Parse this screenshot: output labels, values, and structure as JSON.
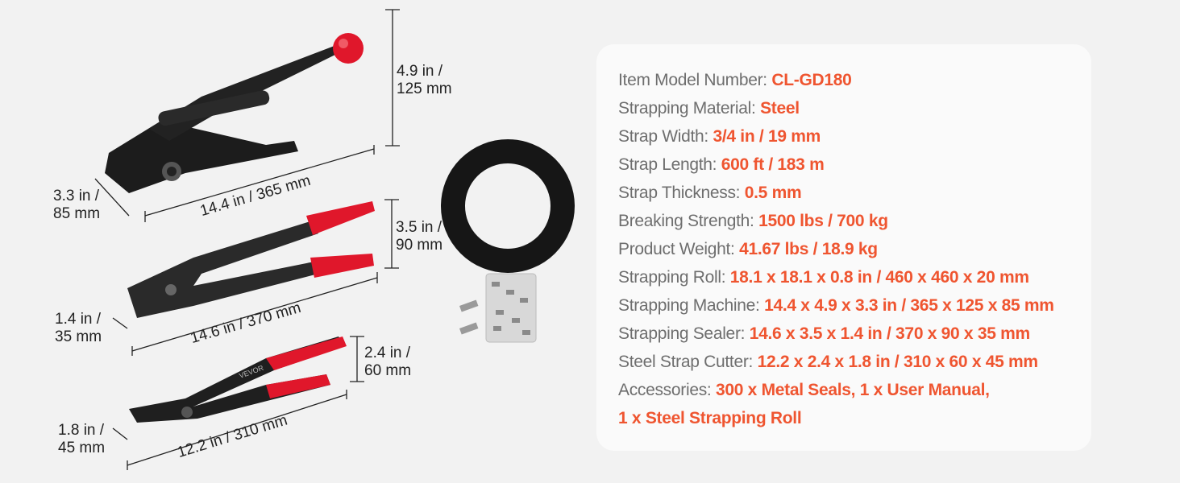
{
  "colors": {
    "accent": "#ef5530",
    "label": "#6e6e6e",
    "background": "#f2f2f2",
    "card": "#fafafa",
    "tool_red": "#e0172b",
    "tool_black": "#1c1c1c"
  },
  "dimensions": {
    "machine_height": [
      "4.9 in /",
      "125 mm"
    ],
    "machine_width": [
      "3.3 in /",
      "85 mm"
    ],
    "machine_length": "14.4 in / 365 mm",
    "sealer_height": [
      "3.5 in /",
      "90 mm"
    ],
    "sealer_width": [
      "1.4 in /",
      "35 mm"
    ],
    "sealer_length": "14.6 in / 370 mm",
    "cutter_height": [
      "2.4 in /",
      "60 mm"
    ],
    "cutter_width": [
      "1.8 in /",
      "45 mm"
    ],
    "cutter_length": "12.2 in / 310 mm"
  },
  "brand_mark": "VEVOR",
  "specs": [
    {
      "label": "Item Model Number: ",
      "value": "CL-GD180"
    },
    {
      "label": "Strapping Material: ",
      "value": "Steel"
    },
    {
      "label": "Strap Width: ",
      "value": "3/4 in / 19 mm"
    },
    {
      "label": "Strap Length: ",
      "value": "600 ft / 183 m"
    },
    {
      "label": "Strap Thickness: ",
      "value": "0.5 mm"
    },
    {
      "label": "Breaking Strength: ",
      "value": "1500 lbs / 700 kg"
    },
    {
      "label": "Product Weight: ",
      "value": "41.67 lbs / 18.9 kg"
    },
    {
      "label": "Strapping Roll: ",
      "value": "18.1 x 18.1 x 0.8 in / 460 x 460 x 20 mm"
    },
    {
      "label": "Strapping Machine: ",
      "value": "14.4 x 4.9 x 3.3 in / 365 x 125 x 85 mm"
    },
    {
      "label": "Strapping Sealer: ",
      "value": "14.6 x 3.5 x 1.4 in / 370 x 90 x 35 mm"
    },
    {
      "label": "Steel Strap Cutter: ",
      "value": "12.2 x 2.4 x 1.8 in / 310 x 60 x 45 mm"
    },
    {
      "label": "Accessories: ",
      "value": "300 x Metal Seals, 1 x User Manual,"
    },
    {
      "label": "",
      "value": "1 x Steel Strapping Roll"
    }
  ]
}
